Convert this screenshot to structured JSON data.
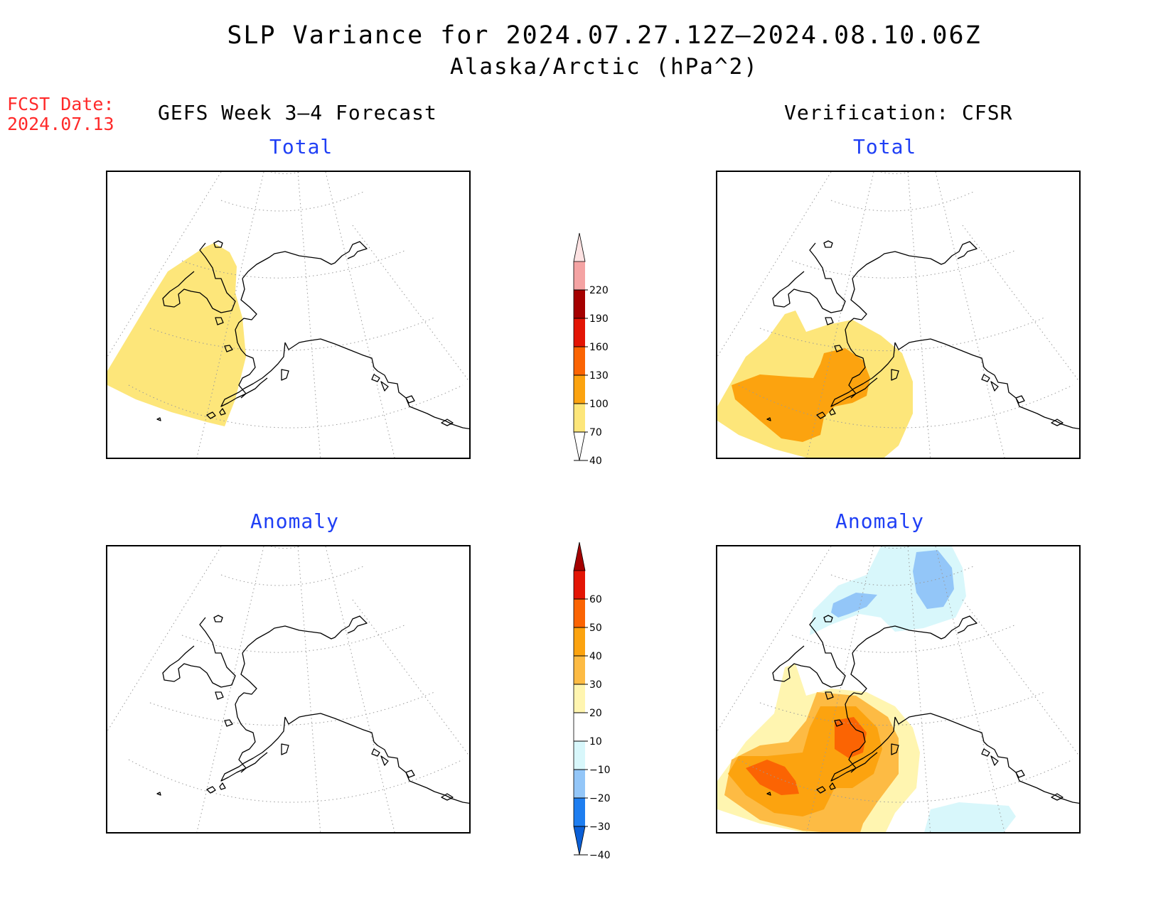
{
  "title": {
    "line1": "SLP Variance for 2024.07.27.12Z–2024.08.10.06Z",
    "line2": "Alaska/Arctic (hPa^2)"
  },
  "forecast_date": {
    "label": "FCST Date:",
    "value": "2024.07.13"
  },
  "columns": {
    "left": "GEFS Week 3–4 Forecast",
    "right": "Verification: CFSR"
  },
  "panels": {
    "top_left": {
      "label": "Total"
    },
    "top_right": {
      "label": "Total"
    },
    "bottom_left": {
      "label": "Anomaly"
    },
    "bottom_right": {
      "label": "Anomaly"
    }
  },
  "colorbars": {
    "total": {
      "levels": [
        "40",
        "70",
        "100",
        "130",
        "160",
        "190",
        "220"
      ],
      "colors": [
        "#fde67a",
        "#fca30f",
        "#fb6403",
        "#e31505",
        "#a50000",
        "#f4a3a3",
        "#fde2e2"
      ]
    },
    "anomaly": {
      "levels": [
        "−40",
        "−30",
        "−20",
        "−10",
        "10",
        "20",
        "30",
        "40",
        "50",
        "60"
      ],
      "colors": [
        "#0b5fd6",
        "#1e7ef0",
        "#93c6f8",
        "#d8f7fb",
        "#ffffff",
        "#fff5b0",
        "#fdbb44",
        "#fca30f",
        "#fb6403",
        "#e31505",
        "#a50000"
      ]
    }
  },
  "shading": {
    "yellow": "#fde67a",
    "orange": "#fca30f",
    "pale_yellow": "#fff5b0",
    "light_orange": "#fdbb44",
    "dark_orange": "#fb6403",
    "pale_cyan": "#d8f7fb",
    "light_blue": "#93c6f8"
  }
}
